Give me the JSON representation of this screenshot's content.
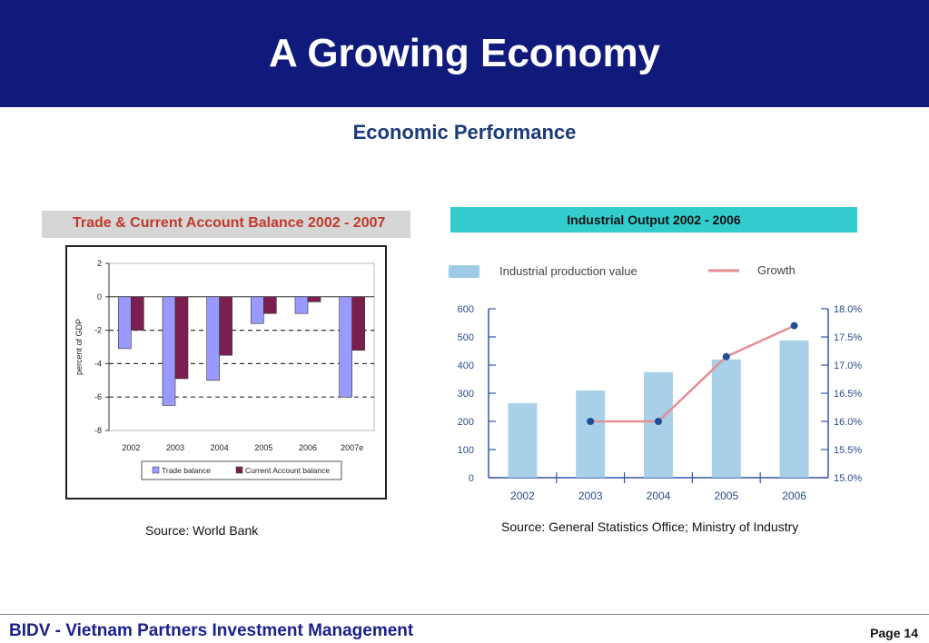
{
  "header": {
    "title": "A Growing Economy"
  },
  "subtitle": "Economic Performance",
  "left_chart": {
    "title": "Trade & Current Account Balance 2002 - 2007",
    "source": "Source: World Bank"
  },
  "right_chart": {
    "title": "Industrial Output 2002 - 2006",
    "source": "Source: General Statistics Office; Ministry of Industry"
  },
  "footer": {
    "org": "BIDV - Vietnam Partners Investment Management",
    "page": "Page 14"
  },
  "colors": {
    "header_bg": "#0f1a7a",
    "trade_balance": "#9999ff",
    "current_account": "#7b1f4f",
    "production_bar": "#9fcbe6",
    "growth_line": "#e58f95",
    "growth_marker": "#1f4e99",
    "right_title_bg": "#33cccc"
  },
  "chart_data": [
    {
      "type": "bar",
      "title": "Trade & Current Account Balance 2002 - 2007",
      "xlabel": "",
      "ylabel": "percent of GDP",
      "categories": [
        "2002",
        "2003",
        "2004",
        "2005",
        "2006",
        "2007e"
      ],
      "ylim": [
        -8,
        2
      ],
      "yticks": [
        "2",
        "0",
        "-2",
        "-4",
        "-6",
        "-8"
      ],
      "series": [
        {
          "name": "Trade balance",
          "values": [
            -3.1,
            -6.5,
            -5.0,
            -1.6,
            -1.0,
            -6.0
          ]
        },
        {
          "name": "Current Account balance",
          "values": [
            -2.0,
            -4.9,
            -3.5,
            -1.0,
            -0.3,
            -3.2
          ]
        }
      ],
      "grid": "dashed horizontal at -2, -4, -6",
      "legend": "bottom"
    },
    {
      "type": "bar",
      "title": "Industrial Output 2002 - 2006",
      "categories": [
        "2002",
        "2003",
        "2004",
        "2005",
        "2006"
      ],
      "ylim": [
        0,
        600
      ],
      "yticks": [
        "600",
        "500",
        "400",
        "300",
        "200",
        "100",
        "0"
      ],
      "y2lim": [
        15.0,
        18.0
      ],
      "y2ticks": [
        "18.0%",
        "17.5%",
        "17.0%",
        "16.5%",
        "16.0%",
        "15.5%",
        "15.0%"
      ],
      "series": [
        {
          "name": "Industrial production value",
          "type": "bar",
          "values": [
            265,
            310,
            375,
            420,
            488
          ]
        },
        {
          "name": "Growth",
          "type": "line",
          "axis": "right",
          "x": [
            "2003",
            "2004",
            "2005",
            "2006"
          ],
          "values": [
            16.0,
            16.0,
            17.15,
            17.7
          ]
        }
      ],
      "legend": "top"
    }
  ]
}
